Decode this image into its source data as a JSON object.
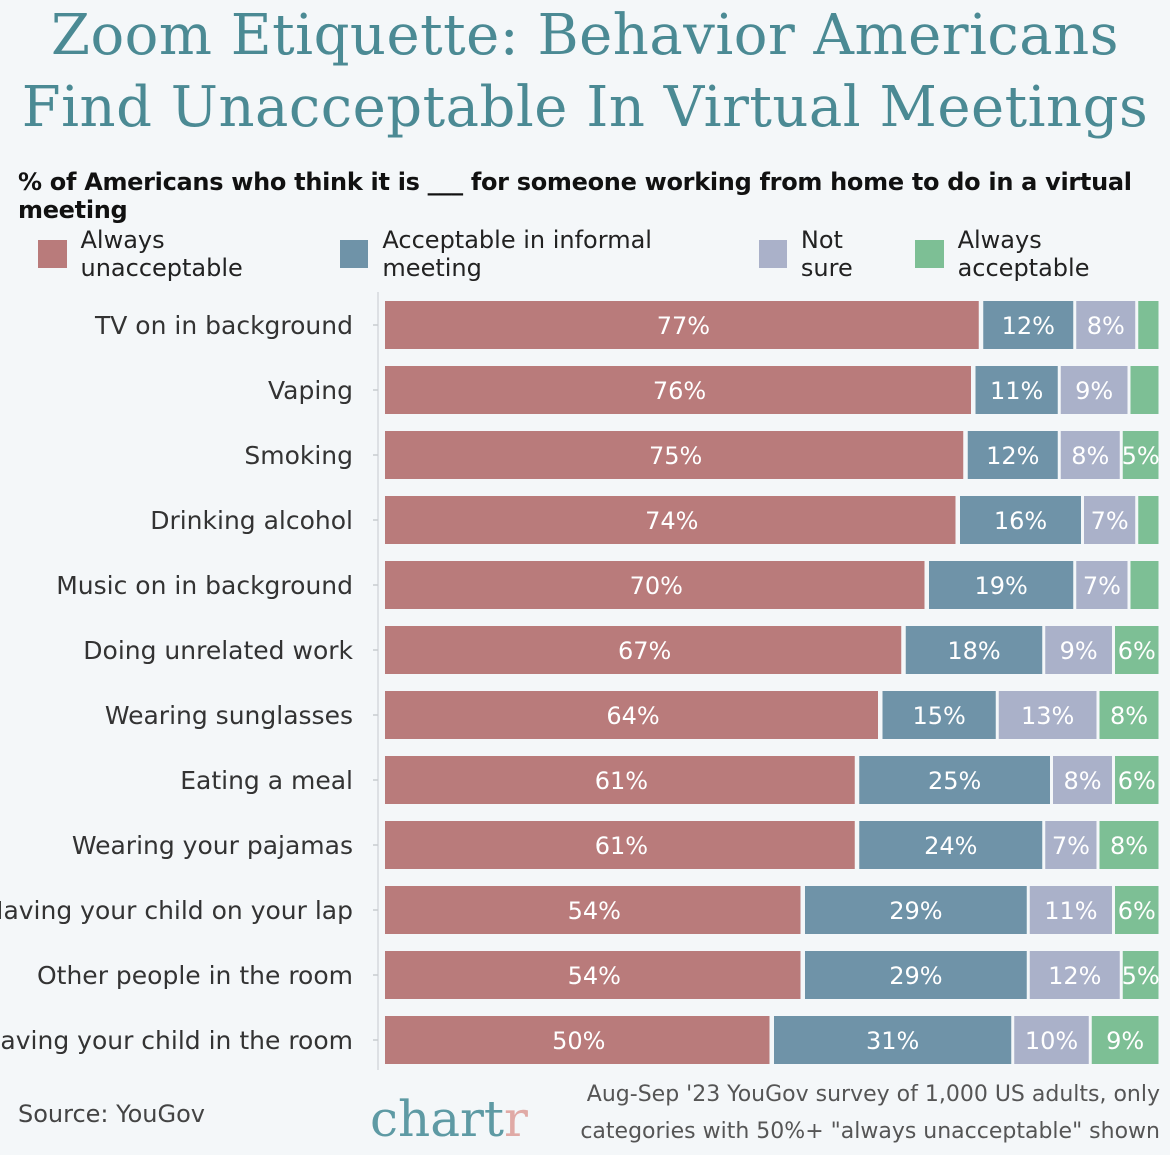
{
  "title_line1": "Zoom Etiquette: Behavior Americans",
  "title_line2": "Find Unacceptable In Virtual Meetings",
  "chart_data": {
    "type": "bar",
    "orientation": "horizontal",
    "stacked": true,
    "subtitle": "% of Americans who think it is ___ for someone working from home to do in a virtual meeting",
    "categories": [
      "TV on in background",
      "Vaping",
      "Smoking",
      "Drinking alcohol",
      "Music on in background",
      "Doing unrelated work",
      "Wearing sunglasses",
      "Eating a meal",
      "Wearing your pajamas",
      "Having your child on your lap",
      "Other people in the room",
      "Having your child in the room"
    ],
    "series": [
      {
        "name": "Always unacceptable",
        "color": "#b97b7b",
        "values": [
          77,
          76,
          75,
          74,
          70,
          67,
          64,
          61,
          61,
          54,
          54,
          50
        ]
      },
      {
        "name": "Acceptable in informal meeting",
        "color": "#6f93a8",
        "values": [
          12,
          11,
          12,
          16,
          19,
          18,
          15,
          25,
          24,
          29,
          29,
          31
        ]
      },
      {
        "name": "Not sure",
        "color": "#aab1c9",
        "values": [
          8,
          9,
          8,
          7,
          7,
          9,
          13,
          8,
          7,
          11,
          12,
          10
        ]
      },
      {
        "name": "Always acceptable",
        "color": "#7dbf95",
        "values": [
          3,
          4,
          5,
          3,
          4,
          6,
          8,
          6,
          8,
          6,
          5,
          9
        ]
      }
    ],
    "xlim": [
      0,
      100
    ],
    "legend": "top"
  },
  "footer": {
    "source": "Source: YouGov",
    "logo": "chartr",
    "note_line1": "Aug-Sep '23 YouGov survey of 1,000 US adults, only",
    "note_line2": "categories with 50%+ \"always unacceptable\" shown"
  }
}
